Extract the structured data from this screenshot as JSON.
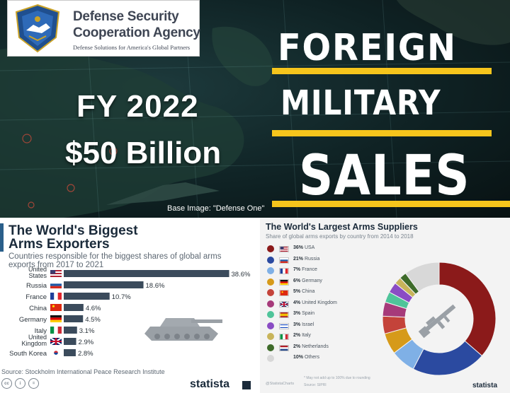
{
  "banner": {
    "agency_line_1": "Defense Security",
    "agency_line_2": "Cooperation Agency",
    "agency_tagline": "Defense Solutions for America's Global Partners",
    "fiscal_year": "FY 2022",
    "amount": "$50 Billion",
    "headline_1": "FOREIGN",
    "headline_2": "MILITARY",
    "headline_3": "SALES",
    "image_credit": "Base Image:  \"Defense One\"",
    "colors": {
      "accent": "#f6c51c",
      "text": "#ffffff",
      "logo_text": "#3f4654"
    }
  },
  "left_panel": {
    "title_line_1": "The World's Biggest",
    "title_line_2": "Arms Exporters",
    "subtitle_line_1": "Countries responsible for the biggest shares of global arms",
    "subtitle_line_2": "exports from 2017 to 2021",
    "source": "Source: Stockholm International Peace Research Institute",
    "brand": "statista",
    "footer_icons": [
      "cc",
      "i",
      "="
    ],
    "icons": [
      "tank-icon"
    ]
  },
  "right_panel": {
    "title": "The World's Largest Arms Suppliers",
    "subtitle": "Share of global arms exports by country from 2014 to 2018",
    "footnote": "* May not add up to 100% due to rounding",
    "footer_left": "@StatistaCharts",
    "source": "Source: SIPRI",
    "brand": "statista",
    "icons": [
      "rifle-icon"
    ]
  },
  "chart_data": [
    {
      "type": "bar",
      "orientation": "horizontal",
      "title": "The World's Biggest Arms Exporters",
      "subtitle": "Countries responsible for the biggest shares of global arms exports from 2017 to 2021",
      "categories": [
        {
          "label_lines": [
            "United",
            "States"
          ],
          "value": 38.6,
          "label": "38.6%",
          "flag": "us"
        },
        {
          "label_lines": [
            "Russia"
          ],
          "value": 18.6,
          "label": "18.6%",
          "flag": "ru"
        },
        {
          "label_lines": [
            "France"
          ],
          "value": 10.7,
          "label": "10.7%",
          "flag": "fr"
        },
        {
          "label_lines": [
            "China"
          ],
          "value": 4.6,
          "label": "4.6%",
          "flag": "cn"
        },
        {
          "label_lines": [
            "Germany"
          ],
          "value": 4.5,
          "label": "4.5%",
          "flag": "de"
        },
        {
          "label_lines": [
            "Italy"
          ],
          "value": 3.1,
          "label": "3.1%",
          "flag": "it"
        },
        {
          "label_lines": [
            "United",
            "Kingdom"
          ],
          "value": 2.9,
          "label": "2.9%",
          "flag": "gb"
        },
        {
          "label_lines": [
            "South Korea"
          ],
          "value": 2.8,
          "label": "2.8%",
          "flag": "kr"
        }
      ],
      "bar_color": "#3b4b5c",
      "xlim": [
        0,
        40
      ]
    },
    {
      "type": "pie",
      "variant": "donut",
      "title": "The World's Largest Arms Suppliers",
      "subtitle": "Share of global arms exports by country from 2014 to 2018",
      "slices": [
        {
          "label": "USA",
          "value": 36,
          "pct_label": "36%",
          "color": "#8b1a1a",
          "flag": "us"
        },
        {
          "label": "Russia",
          "value": 21,
          "pct_label": "21%",
          "color": "#2b4aa0",
          "flag": "ru"
        },
        {
          "label": "France",
          "value": 7,
          "pct_label": "7%",
          "color": "#7fb0e6",
          "flag": "fr"
        },
        {
          "label": "Germany",
          "value": 6,
          "pct_label": "6%",
          "color": "#d69a1a",
          "flag": "de"
        },
        {
          "label": "China",
          "value": 5,
          "pct_label": "5%",
          "color": "#c4433a",
          "flag": "cn"
        },
        {
          "label": "United Kingdom",
          "value": 4,
          "pct_label": "4%",
          "color": "#a63a7a",
          "flag": "gb"
        },
        {
          "label": "Spain",
          "value": 3,
          "pct_label": "3%",
          "color": "#4fc49a",
          "flag": "es"
        },
        {
          "label": "Israel",
          "value": 3,
          "pct_label": "3%",
          "color": "#8a4cc4",
          "flag": "il"
        },
        {
          "label": "Italy",
          "value": 2,
          "pct_label": "2%",
          "color": "#c8b45a",
          "flag": "it"
        },
        {
          "label": "Netherlands",
          "value": 2,
          "pct_label": "2%",
          "color": "#3e6b2a",
          "flag": "nl"
        },
        {
          "label": "Others",
          "value": 10,
          "pct_label": "10%",
          "color": "#d8d8d8",
          "flag": ""
        }
      ]
    }
  ]
}
